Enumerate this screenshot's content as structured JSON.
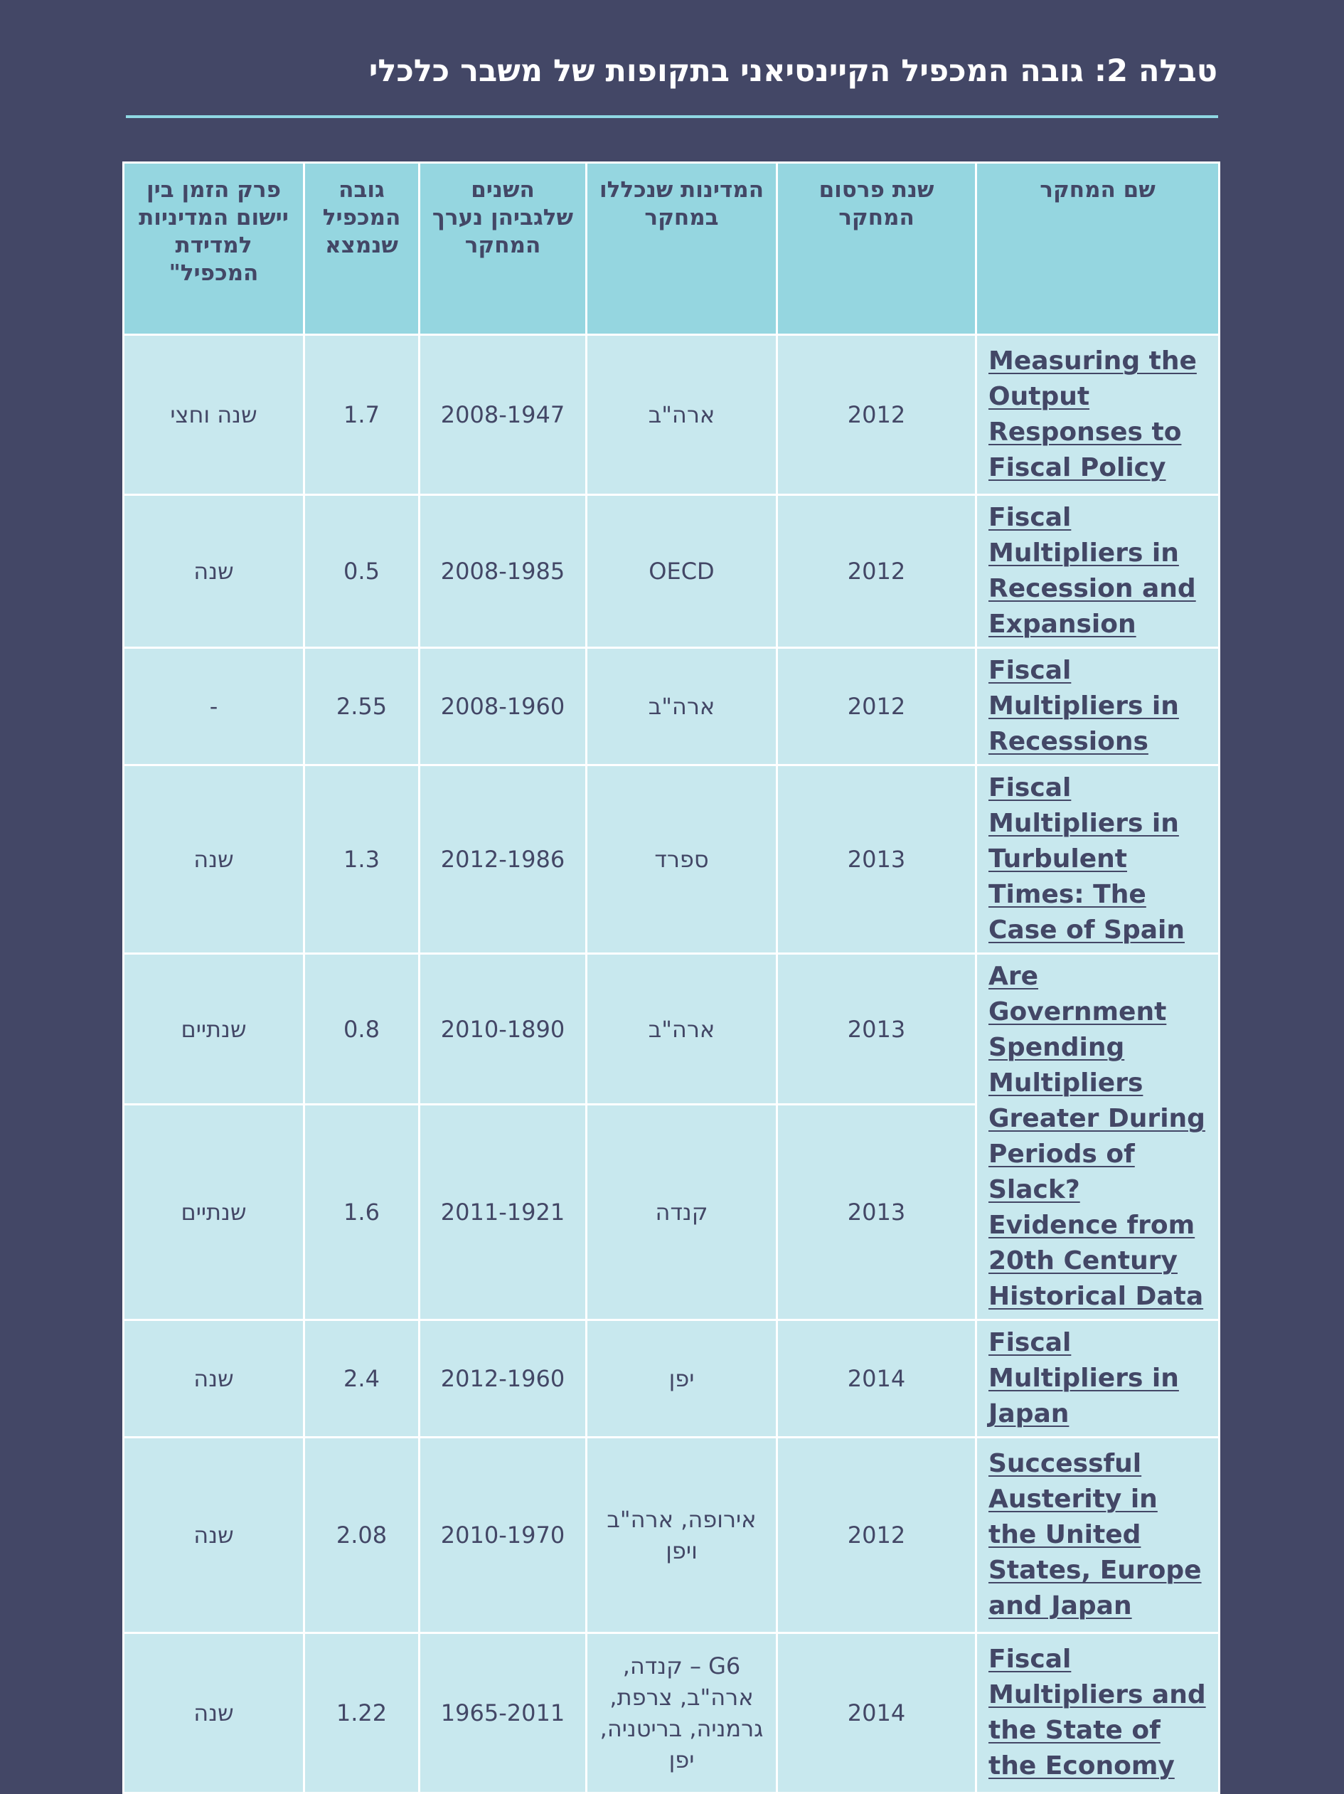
{
  "title": "טבלה 2: גובה המכפיל הקיינסיאני בתקופות של משבר כלכלי",
  "table": {
    "headers": [
      "שם המחקר",
      "שנת פרסום המחקר",
      "המדינות שנכללו במחקר",
      "השנים שלגביהן נערך המחקר",
      "גובה המכפיל שנמצא",
      "פרק הזמן בין יישום המדיניות למדידת המכפיל\""
    ],
    "studies": [
      {
        "name": "Measuring the Output Responses to Fiscal Policy"
      },
      {
        "name": "Fiscal Multipliers in Recession and Expansion"
      },
      {
        "name": "Fiscal Multipliers in Recessions"
      },
      {
        "name": "Fiscal Multipliers in Turbulent Times: The Case of Spain"
      },
      {
        "name": "Are Government Spending Multipliers Greater During Periods of Slack? Evidence from 20th Century Historical Data"
      },
      {
        "name": "Fiscal Multipliers in Japan"
      },
      {
        "name": "Successful Austerity in the United States, Europe and Japan"
      },
      {
        "name": "Fiscal Multipliers and the State of the Economy"
      }
    ],
    "rows": [
      {
        "year": "2012",
        "countries": "ארה\"ב",
        "period": "2008-1947",
        "multiplier": "1.7",
        "lag": "שנה וחצי"
      },
      {
        "year": "2012",
        "countries": "OECD",
        "period": "2008-1985",
        "multiplier": "0.5",
        "lag": "שנה"
      },
      {
        "year": "2012",
        "countries": "ארה\"ב",
        "period": "2008-1960",
        "multiplier": "2.55",
        "lag": "-"
      },
      {
        "year": "2013",
        "countries": "ספרד",
        "period": "2012-1986",
        "multiplier": "1.3",
        "lag": "שנה"
      },
      {
        "year": "2013",
        "countries": "ארה\"ב",
        "period": "2010-1890",
        "multiplier": "0.8",
        "lag": "שנתיים"
      },
      {
        "year": "2013",
        "countries": "קנדה",
        "period": "2011-1921",
        "multiplier": "1.6",
        "lag": "שנתיים"
      },
      {
        "year": "2014",
        "countries": "יפן",
        "period": "2012-1960",
        "multiplier": "2.4",
        "lag": "שנה"
      },
      {
        "year": "2012",
        "countries": "אירופה, ארה\"ב ויפן",
        "period": "2010-1970",
        "multiplier": "2.08",
        "lag": "שנה"
      },
      {
        "year": "2014",
        "countries": "G6 – קנדה, ארה\"ב, צרפת, גרמניה, בריטניה, יפן",
        "period": "1965-2011",
        "multiplier": "1.22",
        "lag": "שנה"
      }
    ]
  }
}
